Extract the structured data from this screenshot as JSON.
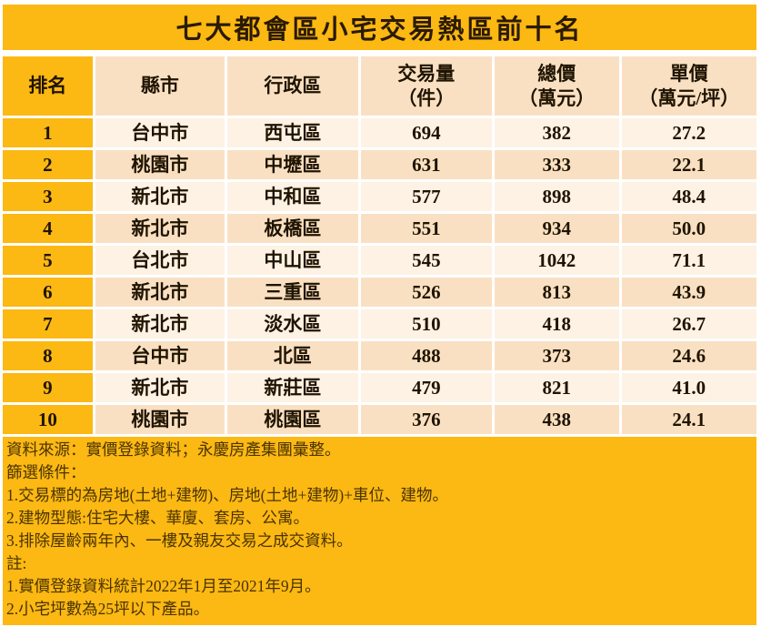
{
  "title": "七大都會區小宅交易熱區前十名",
  "colors": {
    "gold": "#FCB813",
    "peach_dark": "#FAE0C3",
    "peach_light": "#FDF2E4",
    "text_dark": "#1f1400",
    "footer_text": "#4a3400"
  },
  "table": {
    "headers": [
      {
        "line1": "排名",
        "line2": ""
      },
      {
        "line1": "縣市",
        "line2": ""
      },
      {
        "line1": "行政區",
        "line2": ""
      },
      {
        "line1": "交易量",
        "line2": "（件）"
      },
      {
        "line1": "總價",
        "line2": "（萬元）"
      },
      {
        "line1": "單價",
        "line2": "（萬元/坪）"
      }
    ],
    "rows": [
      {
        "rank": "1",
        "city": "台中市",
        "district": "西屯區",
        "volume": "694",
        "total_price": "382",
        "unit_price": "27.2"
      },
      {
        "rank": "2",
        "city": "桃園市",
        "district": "中壢區",
        "volume": "631",
        "total_price": "333",
        "unit_price": "22.1"
      },
      {
        "rank": "3",
        "city": "新北市",
        "district": "中和區",
        "volume": "577",
        "total_price": "898",
        "unit_price": "48.4"
      },
      {
        "rank": "4",
        "city": "新北市",
        "district": "板橋區",
        "volume": "551",
        "total_price": "934",
        "unit_price": "50.0"
      },
      {
        "rank": "5",
        "city": "台北市",
        "district": "中山區",
        "volume": "545",
        "total_price": "1042",
        "unit_price": "71.1"
      },
      {
        "rank": "6",
        "city": "新北市",
        "district": "三重區",
        "volume": "526",
        "total_price": "813",
        "unit_price": "43.9"
      },
      {
        "rank": "7",
        "city": "新北市",
        "district": "淡水區",
        "volume": "510",
        "total_price": "418",
        "unit_price": "26.7"
      },
      {
        "rank": "8",
        "city": "台中市",
        "district": "北區",
        "volume": "488",
        "total_price": "373",
        "unit_price": "24.6"
      },
      {
        "rank": "9",
        "city": "新北市",
        "district": "新莊區",
        "volume": "479",
        "total_price": "821",
        "unit_price": "41.0"
      },
      {
        "rank": "10",
        "city": "桃園市",
        "district": "桃園區",
        "volume": "376",
        "total_price": "438",
        "unit_price": "24.1"
      }
    ]
  },
  "footer": {
    "lines": [
      "資料來源：實價登錄資料；永慶房產集團彙整。",
      "篩選條件：",
      "1.交易標的為房地(土地+建物)、房地(土地+建物)+車位、建物。",
      "2.建物型態:住宅大樓、華廈、套房、公寓。",
      "3.排除屋齡兩年內、一樓及親友交易之成交資料。",
      "註:",
      "1.實價登錄資料統計2022年1月至2021年9月。",
      "2.小宅坪數為25坪以下產品。"
    ]
  },
  "chart_data": {
    "type": "table",
    "title": "七大都會區小宅交易熱區前十名",
    "columns": [
      "排名",
      "縣市",
      "行政區",
      "交易量（件）",
      "總價（萬元）",
      "單價（萬元/坪）"
    ],
    "rows": [
      [
        1,
        "台中市",
        "西屯區",
        694,
        382,
        27.2
      ],
      [
        2,
        "桃園市",
        "中壢區",
        631,
        333,
        22.1
      ],
      [
        3,
        "新北市",
        "中和區",
        577,
        898,
        48.4
      ],
      [
        4,
        "新北市",
        "板橋區",
        551,
        934,
        50.0
      ],
      [
        5,
        "台北市",
        "中山區",
        545,
        1042,
        71.1
      ],
      [
        6,
        "新北市",
        "三重區",
        526,
        813,
        43.9
      ],
      [
        7,
        "新北市",
        "淡水區",
        510,
        418,
        26.7
      ],
      [
        8,
        "台中市",
        "北區",
        488,
        373,
        24.6
      ],
      [
        9,
        "新北市",
        "新莊區",
        479,
        821,
        41.0
      ],
      [
        10,
        "桃園市",
        "桃園區",
        376,
        438,
        24.1
      ]
    ]
  }
}
